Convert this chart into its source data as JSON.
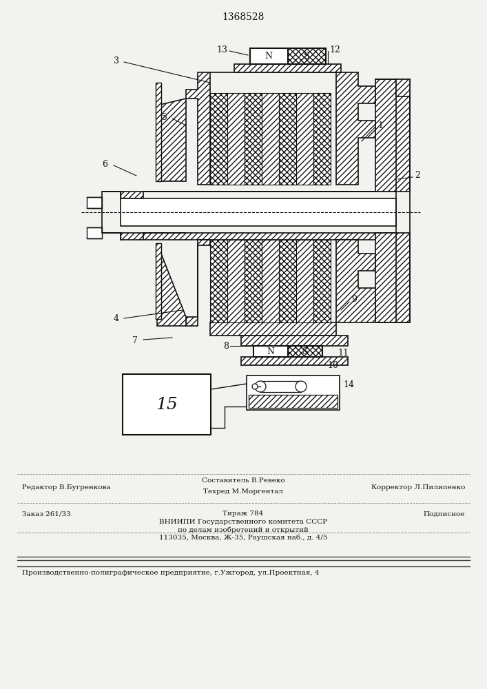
{
  "patent_number": "1368528",
  "bg": "#f2f2ee",
  "lc": "#111111",
  "footer": {
    "editor": "Редактор В.Бугренкова",
    "compiler": "Составитель В.Ревеко",
    "techred": "Техред М.Моргентал",
    "corrector": "Корректор Л.Пилипенко",
    "order": "Заказ 261/33",
    "tirazh": "Тираж 784",
    "podpisnoe": "Подписное",
    "vniiki_line1": "ВНИИПИ Государственного комитета СССР",
    "vniiki_line2": "по делам изобретений и открытий",
    "vniiki_line3": "113035, Москва, Ж-35, Раушская наб., д. 4/5",
    "production": "Производственно-полиграфическое предприятие, г.Ужгород, ул.Проектная, 4"
  }
}
